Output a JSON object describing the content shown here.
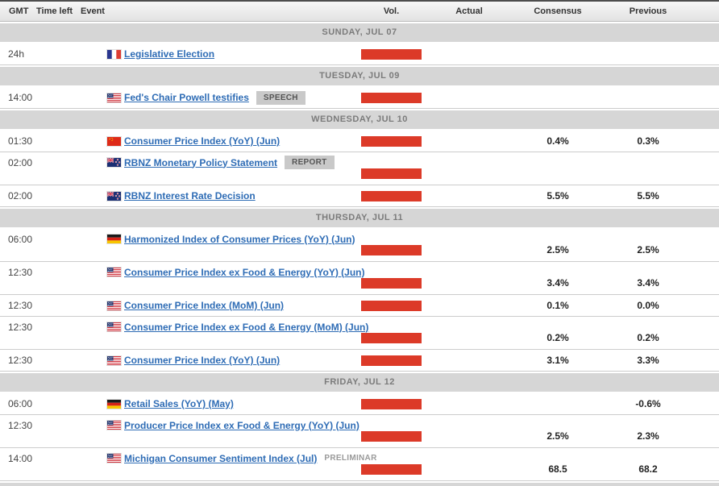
{
  "table": {
    "columns": [
      "GMT",
      "Time left",
      "Event",
      "Vol.",
      "Actual",
      "Consensus",
      "Previous"
    ]
  },
  "colors": {
    "volatility_bar": "#dc3a28",
    "link": "#2e6cb5",
    "day_separator_bg": "#d6d6d6"
  },
  "rows": [
    {
      "type": "day",
      "label": "SUNDAY, JUL 07"
    },
    {
      "type": "event",
      "gmt": "24h",
      "country": "France",
      "flag": "fr",
      "event": "Legislative Election",
      "badge": "",
      "badge_boxed": false,
      "two_line": false,
      "actual": "",
      "consensus": "",
      "previous": ""
    },
    {
      "type": "day",
      "label": "TUESDAY, JUL 09"
    },
    {
      "type": "event",
      "gmt": "14:00",
      "country": "United States",
      "flag": "us",
      "event": "Fed's Chair Powell testifies",
      "badge": "SPEECH",
      "badge_boxed": true,
      "two_line": false,
      "actual": "",
      "consensus": "",
      "previous": ""
    },
    {
      "type": "day",
      "label": "WEDNESDAY, JUL 10"
    },
    {
      "type": "event",
      "gmt": "01:30",
      "country": "China",
      "flag": "cn",
      "event": "Consumer Price Index (YoY) (Jun)",
      "badge": "",
      "badge_boxed": false,
      "two_line": false,
      "actual": "",
      "consensus": "0.4%",
      "previous": "0.3%"
    },
    {
      "type": "event",
      "gmt": "02:00",
      "country": "New Zealand",
      "flag": "nz",
      "event": "RBNZ Monetary Policy Statement",
      "badge": "REPORT",
      "badge_boxed": true,
      "two_line": true,
      "actual": "",
      "consensus": "",
      "previous": ""
    },
    {
      "type": "event",
      "gmt": "02:00",
      "country": "New Zealand",
      "flag": "nz",
      "event": "RBNZ Interest Rate Decision",
      "badge": "",
      "badge_boxed": false,
      "two_line": false,
      "actual": "",
      "consensus": "5.5%",
      "previous": "5.5%"
    },
    {
      "type": "day",
      "label": "THURSDAY, JUL 11"
    },
    {
      "type": "event",
      "gmt": "06:00",
      "country": "Germany",
      "flag": "de",
      "event": "Harmonized Index of Consumer Prices (YoY) (Jun)",
      "badge": "",
      "badge_boxed": false,
      "two_line": true,
      "actual": "",
      "consensus": "2.5%",
      "previous": "2.5%"
    },
    {
      "type": "event",
      "gmt": "12:30",
      "country": "United States",
      "flag": "us",
      "event": "Consumer Price Index ex Food & Energy (YoY) (Jun)",
      "badge": "",
      "badge_boxed": false,
      "two_line": true,
      "actual": "",
      "consensus": "3.4%",
      "previous": "3.4%"
    },
    {
      "type": "event",
      "gmt": "12:30",
      "country": "United States",
      "flag": "us",
      "event": "Consumer Price Index (MoM) (Jun)",
      "badge": "",
      "badge_boxed": false,
      "two_line": false,
      "actual": "",
      "consensus": "0.1%",
      "previous": "0.0%"
    },
    {
      "type": "event",
      "gmt": "12:30",
      "country": "United States",
      "flag": "us",
      "event": "Consumer Price Index ex Food & Energy (MoM) (Jun)",
      "badge": "",
      "badge_boxed": false,
      "two_line": true,
      "actual": "",
      "consensus": "0.2%",
      "previous": "0.2%"
    },
    {
      "type": "event",
      "gmt": "12:30",
      "country": "United States",
      "flag": "us",
      "event": "Consumer Price Index (YoY) (Jun)",
      "badge": "",
      "badge_boxed": false,
      "two_line": false,
      "actual": "",
      "consensus": "3.1%",
      "previous": "3.3%"
    },
    {
      "type": "day",
      "label": "FRIDAY, JUL 12"
    },
    {
      "type": "event",
      "gmt": "06:00",
      "country": "Germany",
      "flag": "de",
      "event": "Retail Sales (YoY) (May)",
      "badge": "",
      "badge_boxed": false,
      "two_line": false,
      "actual": "",
      "consensus": "",
      "previous": "-0.6%"
    },
    {
      "type": "event",
      "gmt": "12:30",
      "country": "United States",
      "flag": "us",
      "event": "Producer Price Index ex Food & Energy (YoY) (Jun)",
      "badge": "",
      "badge_boxed": false,
      "two_line": true,
      "actual": "",
      "consensus": "2.5%",
      "previous": "2.3%"
    },
    {
      "type": "event",
      "gmt": "14:00",
      "country": "United States",
      "flag": "us",
      "event": "Michigan Consumer Sentiment Index (Jul)",
      "badge": "PRELIMINAR",
      "badge_boxed": false,
      "two_line": true,
      "actual": "",
      "consensus": "68.5",
      "previous": "68.2"
    }
  ]
}
